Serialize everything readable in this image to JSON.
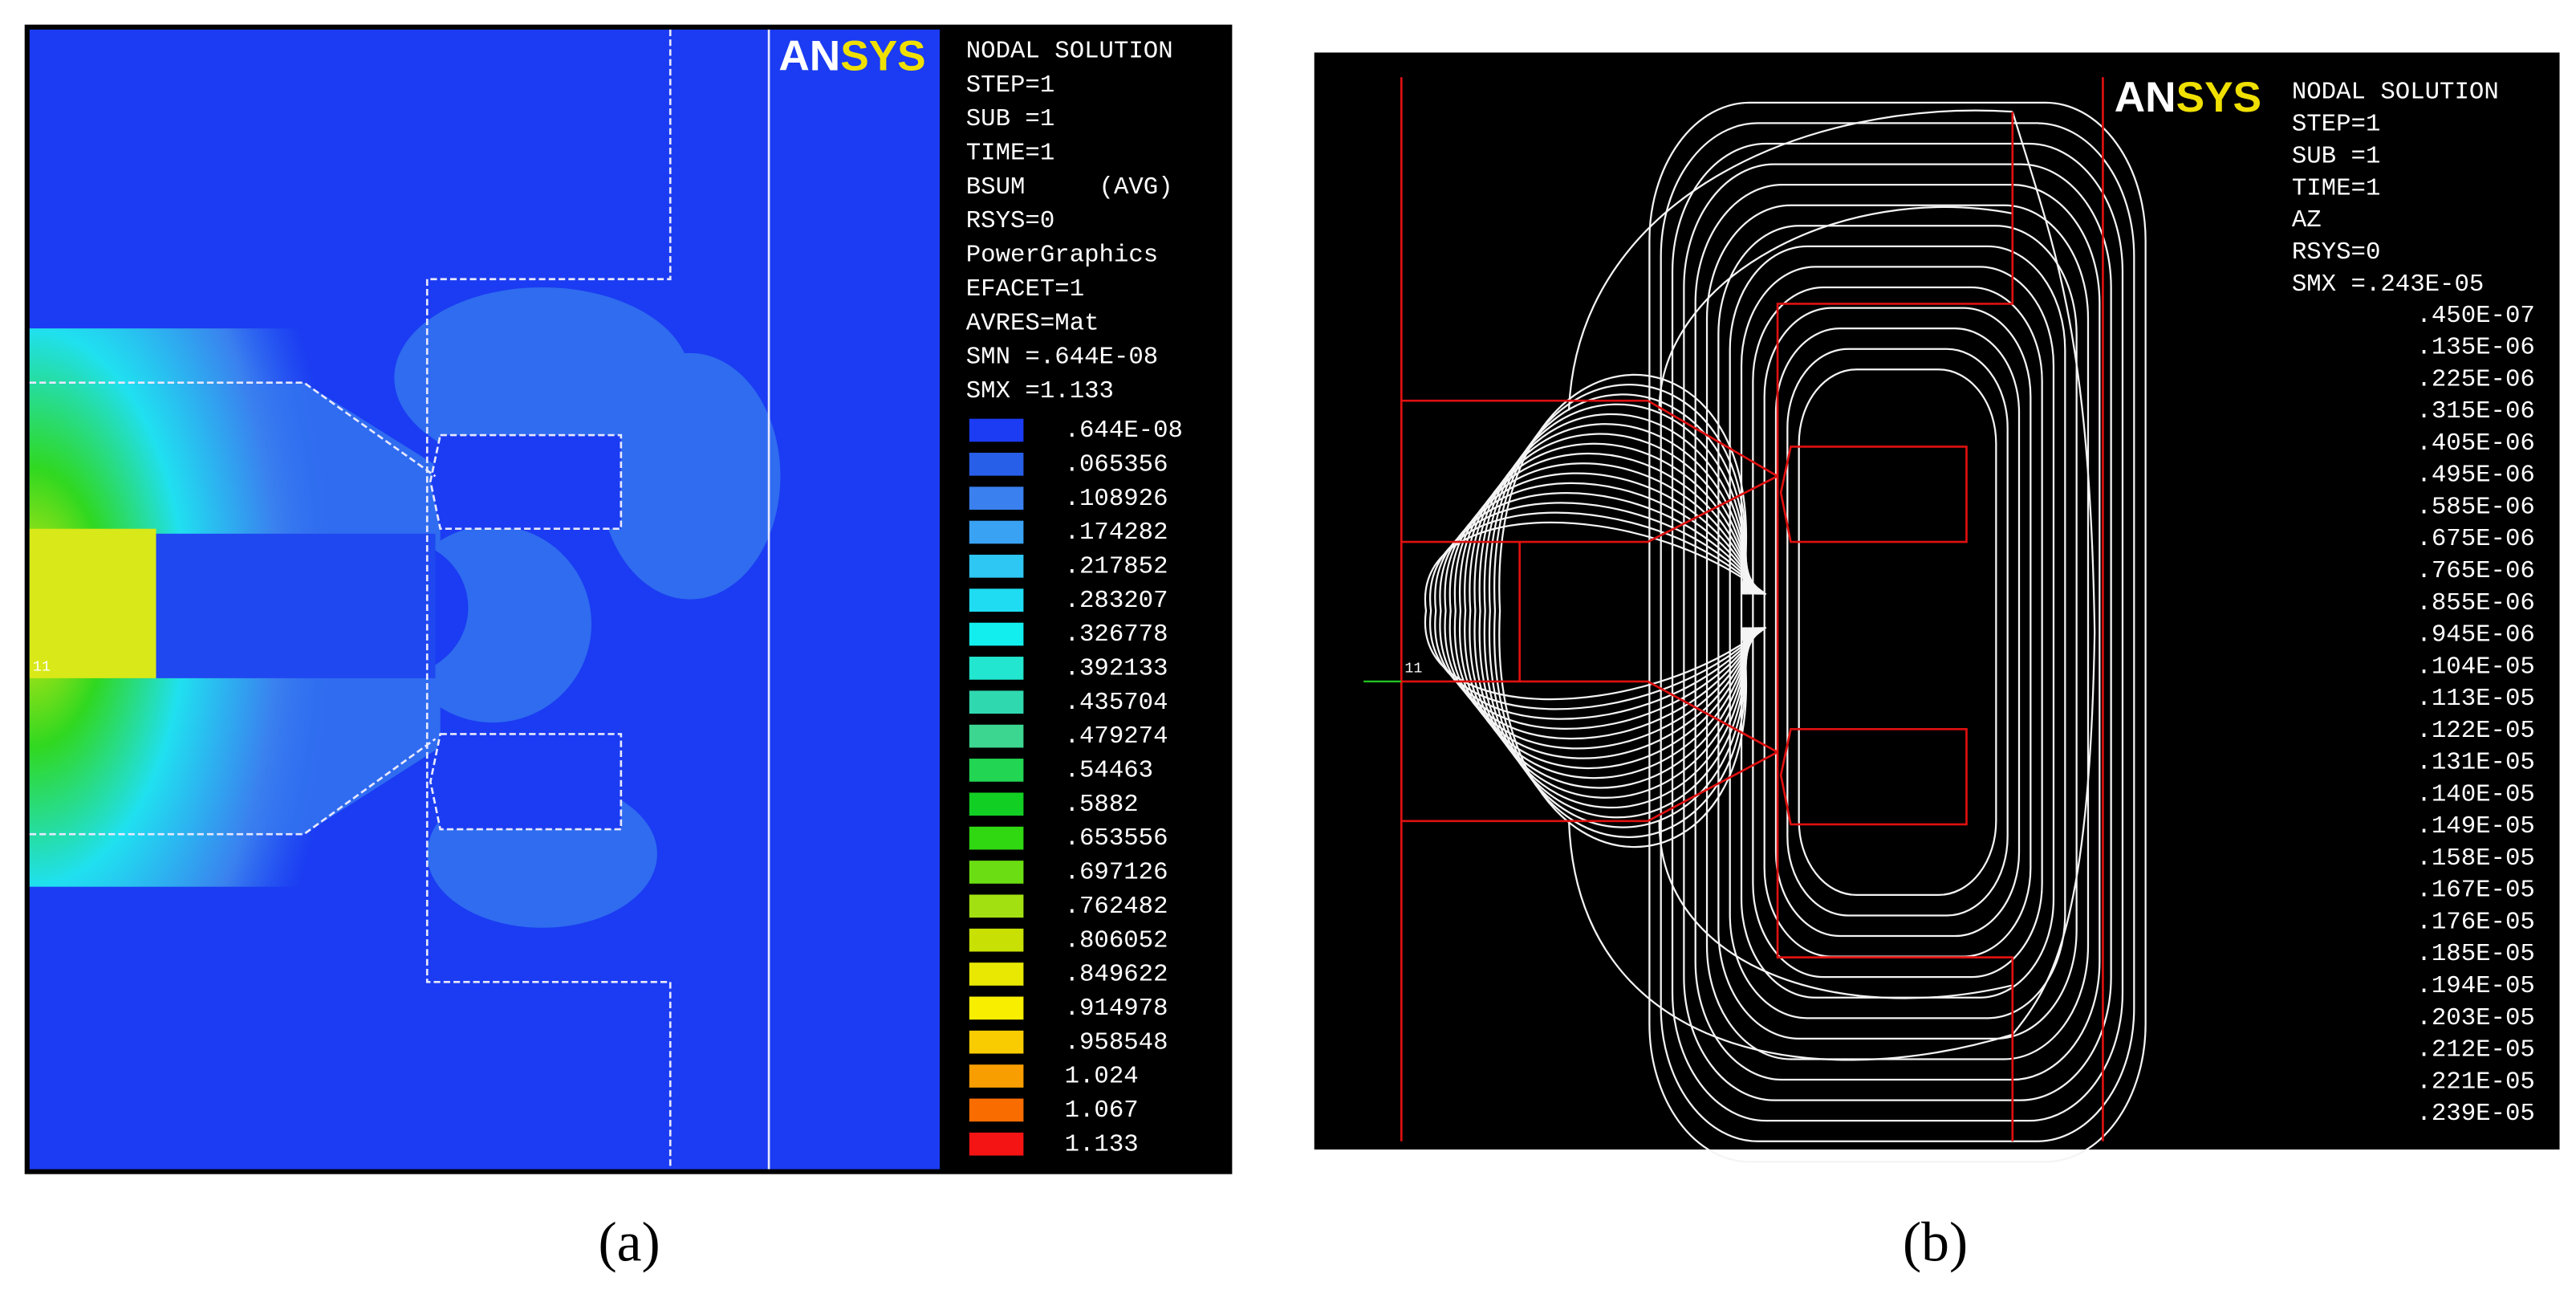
{
  "panels": [
    {
      "caption": "(a)",
      "logo": "ANSYS",
      "node_label": "11",
      "info": [
        "NODAL SOLUTION",
        "STEP=1",
        "SUB =1",
        "TIME=1",
        "BSUM     (AVG)",
        "RSYS=0",
        "PowerGraphics",
        "EFACET=1",
        "AVRES=Mat",
        "SMN =.644E-08",
        "SMX =1.133"
      ],
      "legend": [
        {
          "label": ".644E-08",
          "color": "#1b3cf2"
        },
        {
          "label": ".065356",
          "color": "#285fe9"
        },
        {
          "label": ".108926",
          "color": "#3a80ef"
        },
        {
          "label": ".174282",
          "color": "#3aa2f2"
        },
        {
          "label": ".217852",
          "color": "#2ec6f2"
        },
        {
          "label": ".283207",
          "color": "#1fdcf2"
        },
        {
          "label": ".326778",
          "color": "#12eeee"
        },
        {
          "label": ".392133",
          "color": "#22e6cf"
        },
        {
          "label": ".435704",
          "color": "#30d8b0"
        },
        {
          "label": ".479274",
          "color": "#3cd690"
        },
        {
          "label": ".54463",
          "color": "#22d654"
        },
        {
          "label": ".5882",
          "color": "#12cf24"
        },
        {
          "label": ".653556",
          "color": "#30d812"
        },
        {
          "label": ".697126",
          "color": "#6ade12"
        },
        {
          "label": ".762482",
          "color": "#a2e012"
        },
        {
          "label": ".806052",
          "color": "#c8e004"
        },
        {
          "label": ".849622",
          "color": "#e8e802"
        },
        {
          "label": ".914978",
          "color": "#f8ee00"
        },
        {
          "label": ".958548",
          "color": "#f8cc00"
        },
        {
          "label": "1.024",
          "color": "#f89e00"
        },
        {
          "label": "1.067",
          "color": "#f86c00"
        },
        {
          "label": "1.133",
          "color": "#f41414"
        }
      ]
    },
    {
      "caption": "(b)",
      "logo": "ANSYS",
      "node_label": "11",
      "info": [
        "NODAL SOLUTION",
        "STEP=1",
        "SUB =1",
        "TIME=1",
        "AZ",
        "RSYS=0",
        "SMX =.243E-05"
      ],
      "levels": [
        ".450E-07",
        ".135E-06",
        ".225E-06",
        ".315E-06",
        ".405E-06",
        ".495E-06",
        ".585E-06",
        ".675E-06",
        ".765E-06",
        ".855E-06",
        ".945E-06",
        ".104E-05",
        ".113E-05",
        ".122E-05",
        ".131E-05",
        ".140E-05",
        ".149E-05",
        ".158E-05",
        ".167E-05",
        ".176E-05",
        ".185E-05",
        ".194E-05",
        ".203E-05",
        ".212E-05",
        ".221E-05",
        ".239E-05"
      ]
    }
  ]
}
